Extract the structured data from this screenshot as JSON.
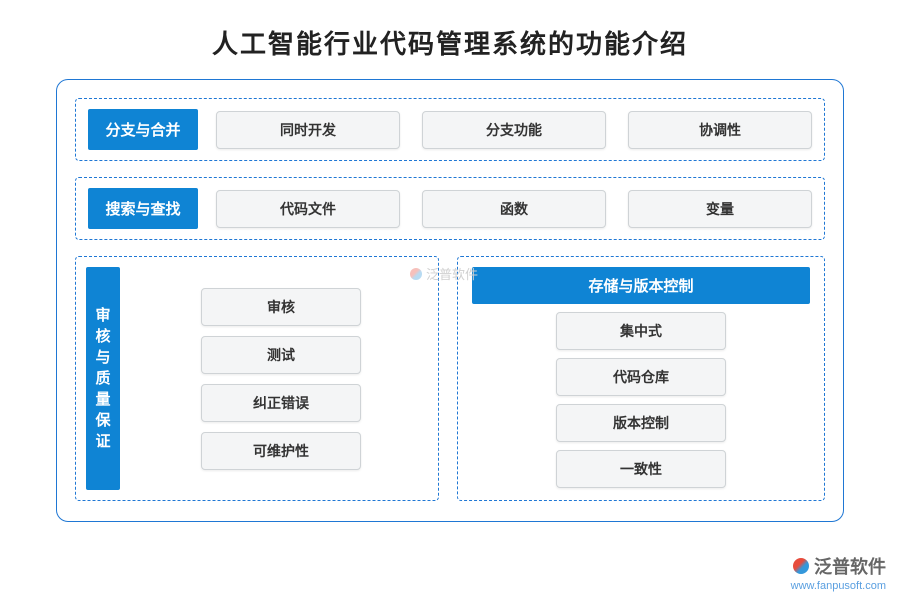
{
  "title": "人工智能行业代码管理系统的功能介绍",
  "colors": {
    "header_bg": "#0f84d4",
    "pill_bg": "#f4f5f6",
    "pill_border": "#cfd3d6",
    "pill_text": "#333333",
    "frame_border": "#1f77d4"
  },
  "rows": [
    {
      "header": "分支与合并",
      "items": [
        "同时开发",
        "分支功能",
        "协调性"
      ]
    },
    {
      "header": "搜索与查找",
      "items": [
        "代码文件",
        "函数",
        "变量"
      ]
    }
  ],
  "bottom": {
    "left": {
      "header": "审核与质量保证",
      "items": [
        "审核",
        "测试",
        "纠正错误",
        "可维护性"
      ]
    },
    "right": {
      "header": "存储与版本控制",
      "items": [
        "集中式",
        "代码仓库",
        "版本控制",
        "一致性"
      ]
    }
  },
  "watermark": {
    "brand": "泛普软件",
    "url": "www.fanpusoft.com"
  }
}
